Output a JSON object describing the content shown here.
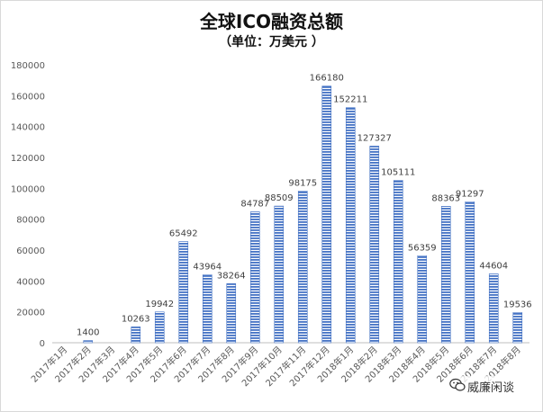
{
  "chart_data": {
    "type": "bar",
    "title": "全球ICO融资总额",
    "subtitle": "（单位：万美元 ）",
    "xlabel": "",
    "ylabel": "",
    "categories": [
      "2017年1月",
      "2017年2月",
      "2017年3月",
      "2017年4月",
      "2017年5月",
      "2017年6月",
      "2017年7月",
      "2017年8月",
      "2017年9月",
      "2017年10月",
      "2017年11月",
      "2017年12月",
      "2018年1月",
      "2018年2月",
      "2018年3月",
      "2018年4月",
      "2018年5月",
      "2018年6月",
      "2018年7月",
      "2018年8月"
    ],
    "values": [
      0,
      1400,
      0,
      10263,
      19942,
      65492,
      43964,
      38264,
      84787,
      88509,
      98175,
      166180,
      152211,
      127327,
      105111,
      56359,
      88363,
      91297,
      44604,
      19536
    ],
    "data_labels": [
      "",
      "1400",
      "",
      "10263",
      "19942",
      "65492",
      "43964",
      "38264",
      "84787",
      "88509",
      "98175",
      "166180",
      "152211",
      "127327",
      "105111",
      "56359",
      "88363",
      "91297",
      "44604",
      "19536"
    ],
    "ylim": [
      0,
      180000
    ],
    "yticks": [
      "0",
      "20000",
      "40000",
      "60000",
      "80000",
      "100000",
      "120000",
      "140000",
      "160000",
      "180000"
    ],
    "grid": false,
    "legend": "none",
    "bar_color": "#4472c4",
    "bar_pattern": "horizontal-stripes"
  },
  "watermark": {
    "text": "威廉闲谈",
    "icon": "wechat-icon"
  }
}
